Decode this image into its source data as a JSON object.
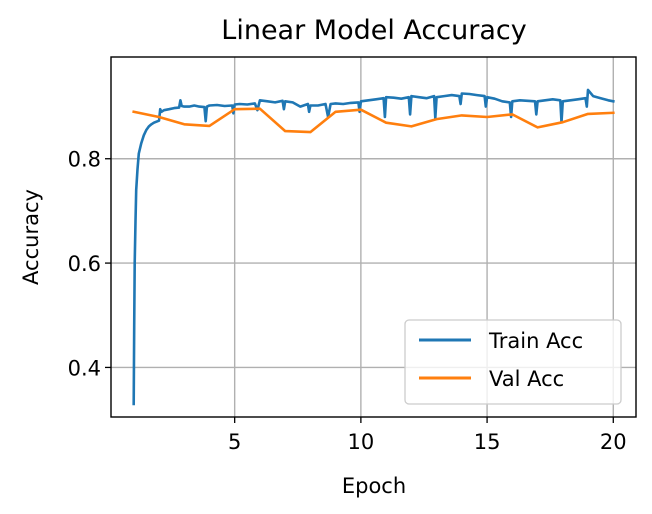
{
  "chart_data": {
    "type": "line",
    "title": "Linear Model Accuracy",
    "xlabel": "Epoch",
    "ylabel": "Accuracy",
    "xlim": [
      0.1,
      20.9
    ],
    "ylim": [
      0.305,
      0.995
    ],
    "xticks": [
      5,
      10,
      15,
      20
    ],
    "yticks": [
      0.4,
      0.6,
      0.8
    ],
    "grid": true,
    "legend_position": "lower right",
    "series": [
      {
        "name": "Train Acc",
        "color": "#1f77b4",
        "x": [
          1.0,
          1.02,
          1.04,
          1.07,
          1.1,
          1.15,
          1.2,
          1.3,
          1.4,
          1.5,
          1.6,
          1.7,
          1.8,
          1.9,
          2.0,
          2.05,
          2.1,
          2.2,
          2.4,
          2.6,
          2.8,
          2.85,
          2.9,
          3.0,
          3.2,
          3.4,
          3.6,
          3.8,
          3.85,
          3.9,
          4.0,
          4.3,
          4.6,
          4.9,
          4.95,
          5.0,
          5.2,
          5.5,
          5.8,
          5.9,
          6.0,
          6.3,
          6.6,
          6.9,
          6.95,
          7.0,
          7.3,
          7.6,
          7.9,
          7.95,
          8.0,
          8.3,
          8.6,
          8.7,
          8.8,
          9.0,
          9.3,
          9.6,
          9.9,
          9.95,
          10.0,
          10.3,
          10.6,
          10.9,
          10.95,
          11.0,
          11.3,
          11.6,
          11.9,
          11.95,
          12.0,
          12.3,
          12.6,
          12.9,
          12.95,
          13.0,
          13.3,
          13.6,
          13.9,
          13.95,
          14.0,
          14.3,
          14.6,
          14.9,
          14.95,
          15.0,
          15.3,
          15.6,
          15.9,
          15.95,
          16.0,
          16.3,
          16.6,
          16.9,
          16.95,
          17.0,
          17.3,
          17.6,
          17.9,
          17.95,
          18.0,
          18.3,
          18.6,
          18.9,
          18.95,
          19.0,
          19.2,
          19.5,
          19.8,
          20.0
        ],
        "values": [
          0.33,
          0.48,
          0.6,
          0.68,
          0.74,
          0.78,
          0.81,
          0.83,
          0.845,
          0.855,
          0.862,
          0.866,
          0.869,
          0.871,
          0.873,
          0.895,
          0.89,
          0.893,
          0.895,
          0.897,
          0.898,
          0.912,
          0.901,
          0.9,
          0.9,
          0.902,
          0.9,
          0.899,
          0.872,
          0.9,
          0.902,
          0.903,
          0.901,
          0.902,
          0.887,
          0.904,
          0.905,
          0.904,
          0.906,
          0.893,
          0.912,
          0.91,
          0.908,
          0.911,
          0.895,
          0.91,
          0.908,
          0.9,
          0.905,
          0.89,
          0.902,
          0.902,
          0.905,
          0.88,
          0.905,
          0.906,
          0.905,
          0.907,
          0.908,
          0.89,
          0.91,
          0.912,
          0.914,
          0.916,
          0.88,
          0.918,
          0.917,
          0.915,
          0.918,
          0.885,
          0.92,
          0.918,
          0.916,
          0.92,
          0.878,
          0.918,
          0.92,
          0.922,
          0.92,
          0.905,
          0.925,
          0.924,
          0.922,
          0.92,
          0.9,
          0.918,
          0.915,
          0.91,
          0.908,
          0.88,
          0.91,
          0.912,
          0.911,
          0.91,
          0.885,
          0.91,
          0.912,
          0.914,
          0.912,
          0.87,
          0.91,
          0.912,
          0.914,
          0.916,
          0.9,
          0.932,
          0.92,
          0.916,
          0.912,
          0.91
        ]
      },
      {
        "name": "Val Acc",
        "color": "#ff7f0e",
        "x": [
          1,
          2,
          3,
          4,
          5,
          6,
          7,
          8,
          9,
          10,
          11,
          12,
          13,
          14,
          15,
          16,
          17,
          18,
          19,
          20
        ],
        "values": [
          0.89,
          0.88,
          0.866,
          0.863,
          0.895,
          0.896,
          0.853,
          0.851,
          0.89,
          0.894,
          0.869,
          0.862,
          0.876,
          0.883,
          0.88,
          0.885,
          0.86,
          0.87,
          0.886,
          0.888
        ]
      }
    ]
  }
}
